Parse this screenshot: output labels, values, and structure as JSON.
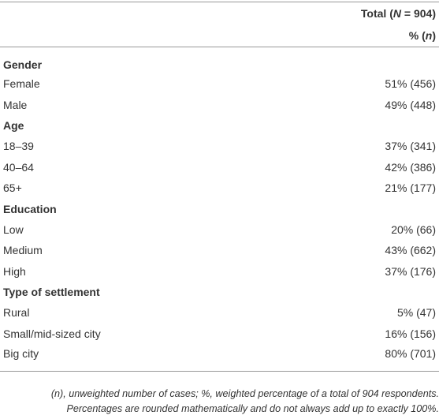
{
  "header": {
    "total": [
      "Total (",
      "N",
      " = 904)"
    ],
    "unit": [
      "% (",
      "n",
      ")"
    ]
  },
  "sections": [
    {
      "title": "Gender",
      "rows": [
        [
          "Female",
          "51% (456)"
        ],
        [
          "Male",
          "49% (448)"
        ]
      ]
    },
    {
      "title": "Age",
      "rows": [
        [
          "18–39",
          "37% (341)"
        ],
        [
          "40–64",
          "42% (386)"
        ],
        [
          "65+",
          "21% (177)"
        ]
      ]
    },
    {
      "title": "Education",
      "rows": [
        [
          "Low",
          "20% (66)"
        ],
        [
          "Medium",
          "43% (662)"
        ],
        [
          "High",
          "37% (176)"
        ]
      ]
    },
    {
      "title": "Type of settlement",
      "rows": [
        [
          "Rural",
          "5% (47)"
        ],
        [
          "Small/mid-sized city",
          "16% (156)"
        ],
        [
          "Big city",
          "80% (701)"
        ]
      ]
    }
  ],
  "footnote": [
    "(n), unweighted number of cases; %, weighted percentage of a total of 904 respondents.",
    "Percentages are rounded mathematically and do not always add up to exactly 100%."
  ]
}
